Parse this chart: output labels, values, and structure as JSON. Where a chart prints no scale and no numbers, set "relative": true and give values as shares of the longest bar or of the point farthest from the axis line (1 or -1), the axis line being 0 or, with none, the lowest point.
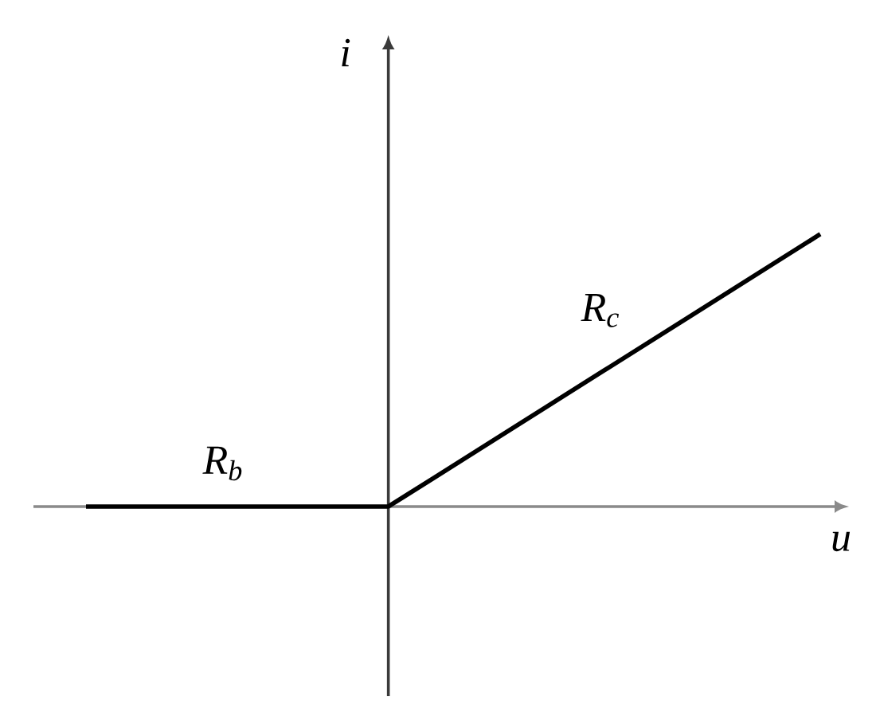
{
  "chart_data": {
    "type": "line",
    "xlabel": "u",
    "ylabel": "i",
    "annotations": [
      "R$_{b}$",
      "R$_{c}$"
    ],
    "categories": [
      null,
      null,
      null,
      null,
      null,
      null,
      null,
      null,
      null,
      null,
      null,
      null,
      null,
      null,
      null,
      null,
      null,
      null
    ],
    "values": [
      0,
      0,
      0,
      0,
      0,
      0,
      0,
      0,
      0.1,
      0.2,
      0.3,
      0.4,
      0.5,
      0.6,
      0.7,
      0.8,
      0.9,
      1.0
    ],
    "color": "#000000",
    "relative": true
  }
}
